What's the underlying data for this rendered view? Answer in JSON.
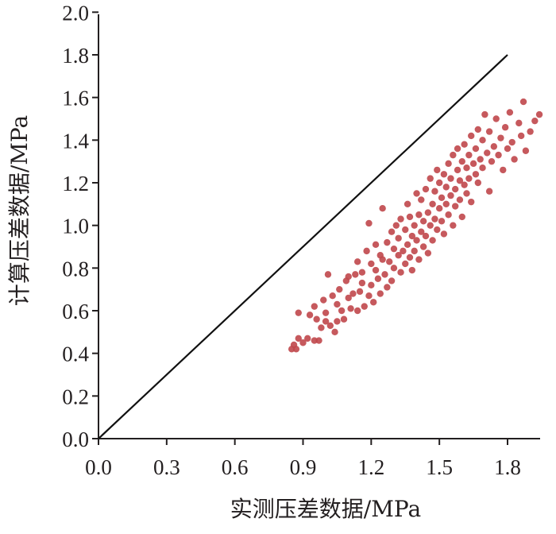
{
  "chart_data": {
    "type": "scatter",
    "xlabel": "实测压差数据/MPa",
    "ylabel": "计算压差数据/MPa",
    "xlim": [
      0,
      1.95
    ],
    "ylim": [
      0,
      2.0
    ],
    "x_ticks": [
      "0.0",
      "0.3",
      "0.6",
      "0.9",
      "1.2",
      "1.5",
      "1.8"
    ],
    "y_ticks": [
      "0.0",
      "0.2",
      "0.4",
      "0.6",
      "0.8",
      "1.0",
      "1.2",
      "1.4",
      "1.6",
      "1.8",
      "2.0"
    ],
    "reference_line": {
      "x": [
        0,
        1.8
      ],
      "y": [
        0,
        1.8
      ]
    },
    "point_color": "#c0474b",
    "series": [
      {
        "points": [
          [
            0.85,
            0.42
          ],
          [
            0.86,
            0.44
          ],
          [
            0.87,
            0.42
          ],
          [
            0.88,
            0.47
          ],
          [
            0.88,
            0.59
          ],
          [
            0.9,
            0.45
          ],
          [
            0.92,
            0.47
          ],
          [
            0.93,
            0.58
          ],
          [
            0.95,
            0.46
          ],
          [
            0.95,
            0.62
          ],
          [
            0.96,
            0.56
          ],
          [
            0.97,
            0.46
          ],
          [
            0.98,
            0.52
          ],
          [
            0.99,
            0.65
          ],
          [
            1.0,
            0.55
          ],
          [
            1.0,
            0.59
          ],
          [
            1.01,
            0.77
          ],
          [
            1.02,
            0.53
          ],
          [
            1.03,
            0.67
          ],
          [
            1.04,
            0.5
          ],
          [
            1.05,
            0.55
          ],
          [
            1.05,
            0.63
          ],
          [
            1.06,
            0.7
          ],
          [
            1.07,
            0.6
          ],
          [
            1.08,
            0.56
          ],
          [
            1.09,
            0.74
          ],
          [
            1.1,
            0.66
          ],
          [
            1.1,
            0.76
          ],
          [
            1.11,
            0.61
          ],
          [
            1.12,
            0.68
          ],
          [
            1.13,
            0.77
          ],
          [
            1.14,
            0.6
          ],
          [
            1.14,
            0.83
          ],
          [
            1.15,
            0.69
          ],
          [
            1.16,
            0.73
          ],
          [
            1.16,
            0.78
          ],
          [
            1.17,
            0.62
          ],
          [
            1.18,
            0.88
          ],
          [
            1.19,
            0.67
          ],
          [
            1.19,
            1.01
          ],
          [
            1.2,
            0.72
          ],
          [
            1.2,
            0.82
          ],
          [
            1.21,
            0.64
          ],
          [
            1.22,
            0.79
          ],
          [
            1.22,
            0.91
          ],
          [
            1.23,
            0.75
          ],
          [
            1.24,
            0.68
          ],
          [
            1.24,
            0.86
          ],
          [
            1.25,
            0.84
          ],
          [
            1.25,
            1.08
          ],
          [
            1.26,
            0.77
          ],
          [
            1.27,
            0.92
          ],
          [
            1.27,
            0.71
          ],
          [
            1.28,
            0.83
          ],
          [
            1.29,
            0.97
          ],
          [
            1.29,
            0.74
          ],
          [
            1.3,
            0.89
          ],
          [
            1.3,
            0.8
          ],
          [
            1.31,
            1.0
          ],
          [
            1.32,
            0.86
          ],
          [
            1.32,
            0.94
          ],
          [
            1.33,
            0.78
          ],
          [
            1.33,
            1.03
          ],
          [
            1.34,
            0.88
          ],
          [
            1.35,
            0.82
          ],
          [
            1.35,
            0.98
          ],
          [
            1.36,
            0.91
          ],
          [
            1.36,
            1.1
          ],
          [
            1.37,
            0.85
          ],
          [
            1.37,
            1.04
          ],
          [
            1.38,
            0.95
          ],
          [
            1.38,
            0.79
          ],
          [
            1.39,
            1.0
          ],
          [
            1.39,
            0.88
          ],
          [
            1.4,
            0.93
          ],
          [
            1.4,
            1.15
          ],
          [
            1.41,
            1.05
          ],
          [
            1.41,
            0.84
          ],
          [
            1.42,
            0.97
          ],
          [
            1.42,
            1.12
          ],
          [
            1.43,
            0.9
          ],
          [
            1.43,
            1.02
          ],
          [
            1.44,
            1.17
          ],
          [
            1.44,
            0.95
          ],
          [
            1.45,
            1.06
          ],
          [
            1.45,
            0.87
          ],
          [
            1.46,
            1.0
          ],
          [
            1.46,
            1.22
          ],
          [
            1.47,
            1.1
          ],
          [
            1.47,
            0.93
          ],
          [
            1.48,
            1.03
          ],
          [
            1.48,
            1.16
          ],
          [
            1.49,
            0.98
          ],
          [
            1.49,
            1.26
          ],
          [
            1.5,
            1.08
          ],
          [
            1.5,
            1.2
          ],
          [
            1.51,
            1.02
          ],
          [
            1.51,
            1.13
          ],
          [
            1.52,
            1.24
          ],
          [
            1.52,
            0.96
          ],
          [
            1.53,
            1.1
          ],
          [
            1.53,
            1.18
          ],
          [
            1.54,
            1.05
          ],
          [
            1.54,
            1.29
          ],
          [
            1.55,
            1.14
          ],
          [
            1.55,
            1.22
          ],
          [
            1.56,
            1.0
          ],
          [
            1.56,
            1.33
          ],
          [
            1.57,
            1.17
          ],
          [
            1.57,
            1.09
          ],
          [
            1.58,
            1.26
          ],
          [
            1.58,
            1.36
          ],
          [
            1.59,
            1.12
          ],
          [
            1.59,
            1.21
          ],
          [
            1.6,
            1.3
          ],
          [
            1.6,
            1.04
          ],
          [
            1.61,
            1.19
          ],
          [
            1.61,
            1.38
          ],
          [
            1.62,
            1.15
          ],
          [
            1.62,
            1.27
          ],
          [
            1.63,
            1.33
          ],
          [
            1.63,
            1.22
          ],
          [
            1.64,
            1.42
          ],
          [
            1.64,
            1.11
          ],
          [
            1.65,
            1.29
          ],
          [
            1.66,
            1.24
          ],
          [
            1.66,
            1.36
          ],
          [
            1.67,
            1.2
          ],
          [
            1.67,
            1.45
          ],
          [
            1.68,
            1.31
          ],
          [
            1.69,
            1.27
          ],
          [
            1.69,
            1.4
          ],
          [
            1.7,
            1.52
          ],
          [
            1.71,
            1.34
          ],
          [
            1.72,
            1.16
          ],
          [
            1.72,
            1.44
          ],
          [
            1.73,
            1.3
          ],
          [
            1.74,
            1.37
          ],
          [
            1.75,
            1.5
          ],
          [
            1.76,
            1.33
          ],
          [
            1.77,
            1.41
          ],
          [
            1.78,
            1.26
          ],
          [
            1.79,
            1.46
          ],
          [
            1.8,
            1.36
          ],
          [
            1.81,
            1.53
          ],
          [
            1.82,
            1.39
          ],
          [
            1.83,
            1.31
          ],
          [
            1.85,
            1.48
          ],
          [
            1.86,
            1.42
          ],
          [
            1.87,
            1.58
          ],
          [
            1.88,
            1.35
          ],
          [
            1.9,
            1.44
          ],
          [
            1.92,
            1.49
          ],
          [
            1.94,
            1.52
          ]
        ]
      }
    ]
  }
}
